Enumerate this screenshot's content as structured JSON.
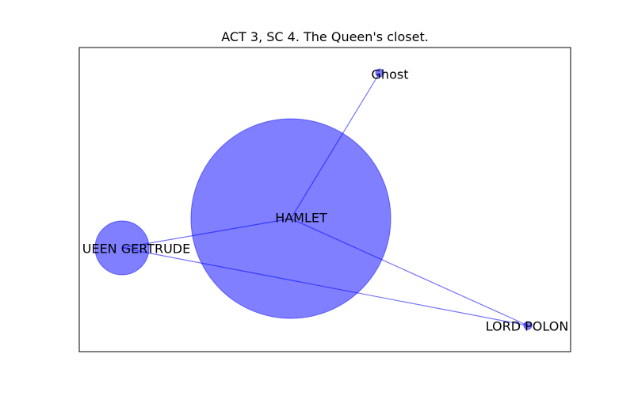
{
  "figure": {
    "title": "ACT 3, SC 4. The Queen's closet."
  },
  "graph": {
    "node_color": "#0000ff",
    "node_alpha": 0.5,
    "edge_color": "#0000ff",
    "edge_alpha": 0.55,
    "nodes": [
      {
        "id": "hamlet",
        "label": "HAMLET",
        "weight": 100
      },
      {
        "id": "ghost",
        "label": "Ghost",
        "weight": 0.15
      },
      {
        "id": "queen",
        "label": "UEEN GERTRUDE",
        "weight": 7.3
      },
      {
        "id": "polonius",
        "label": "LORD POLON",
        "weight": 0.15
      }
    ],
    "edges": [
      {
        "source": "hamlet",
        "target": "ghost"
      },
      {
        "source": "hamlet",
        "target": "queen"
      },
      {
        "source": "hamlet",
        "target": "polonius"
      },
      {
        "source": "queen",
        "target": "polonius"
      }
    ]
  }
}
